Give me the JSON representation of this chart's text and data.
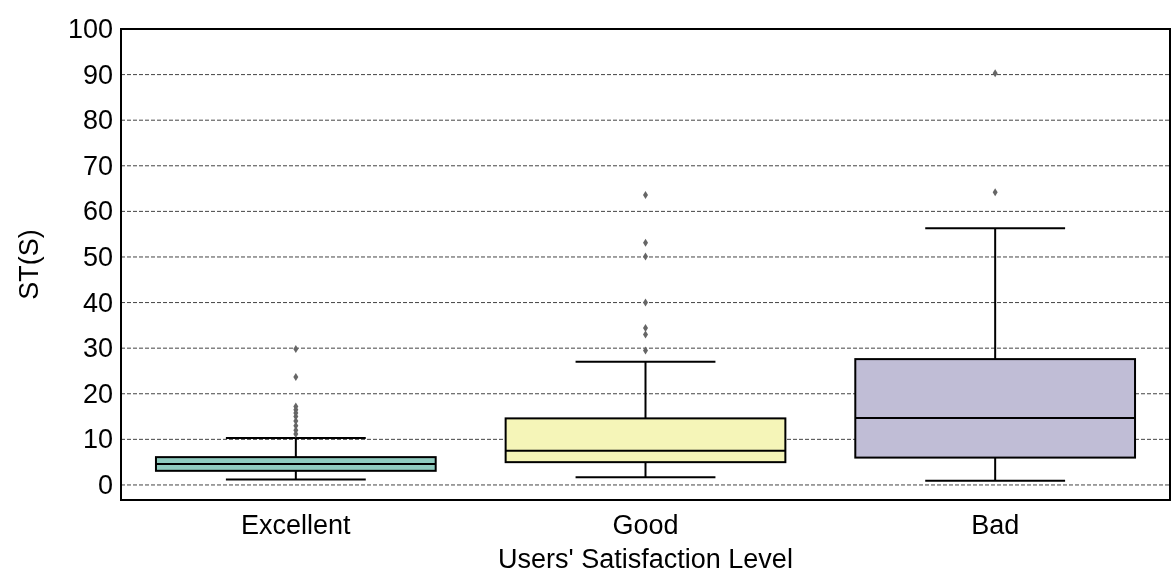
{
  "chart_data": {
    "type": "box",
    "xlabel": "Users' Satisfaction Level",
    "ylabel": "ST(S)",
    "categories": [
      "Excellent",
      "Good",
      "Bad"
    ],
    "colors": [
      "#8fcbbf",
      "#f5f5b8",
      "#c0bdd6"
    ],
    "boxes": [
      {
        "low": 1.2,
        "q1": 3.1,
        "median": 4.6,
        "q3": 6.1,
        "high": 10.3,
        "outliers": [
          29.8,
          23.7,
          17.2,
          16.5,
          15.8,
          15,
          14,
          13,
          12,
          11.2
        ]
      },
      {
        "low": 1.7,
        "q1": 5.0,
        "median": 7.5,
        "q3": 14.6,
        "high": 27.0,
        "outliers": [
          63.6,
          53.1,
          50.1,
          40.0,
          34.4,
          33.0,
          29.5
        ]
      },
      {
        "low": 0.9,
        "q1": 6.0,
        "median": 14.7,
        "q3": 27.6,
        "high": 56.3,
        "outliers": [
          90.3,
          64.2
        ]
      }
    ],
    "ylim": [
      -3.3,
      100
    ],
    "yticks": [
      0,
      10,
      20,
      30,
      40,
      50,
      60,
      70,
      80,
      90,
      100
    ],
    "grid": "y"
  }
}
